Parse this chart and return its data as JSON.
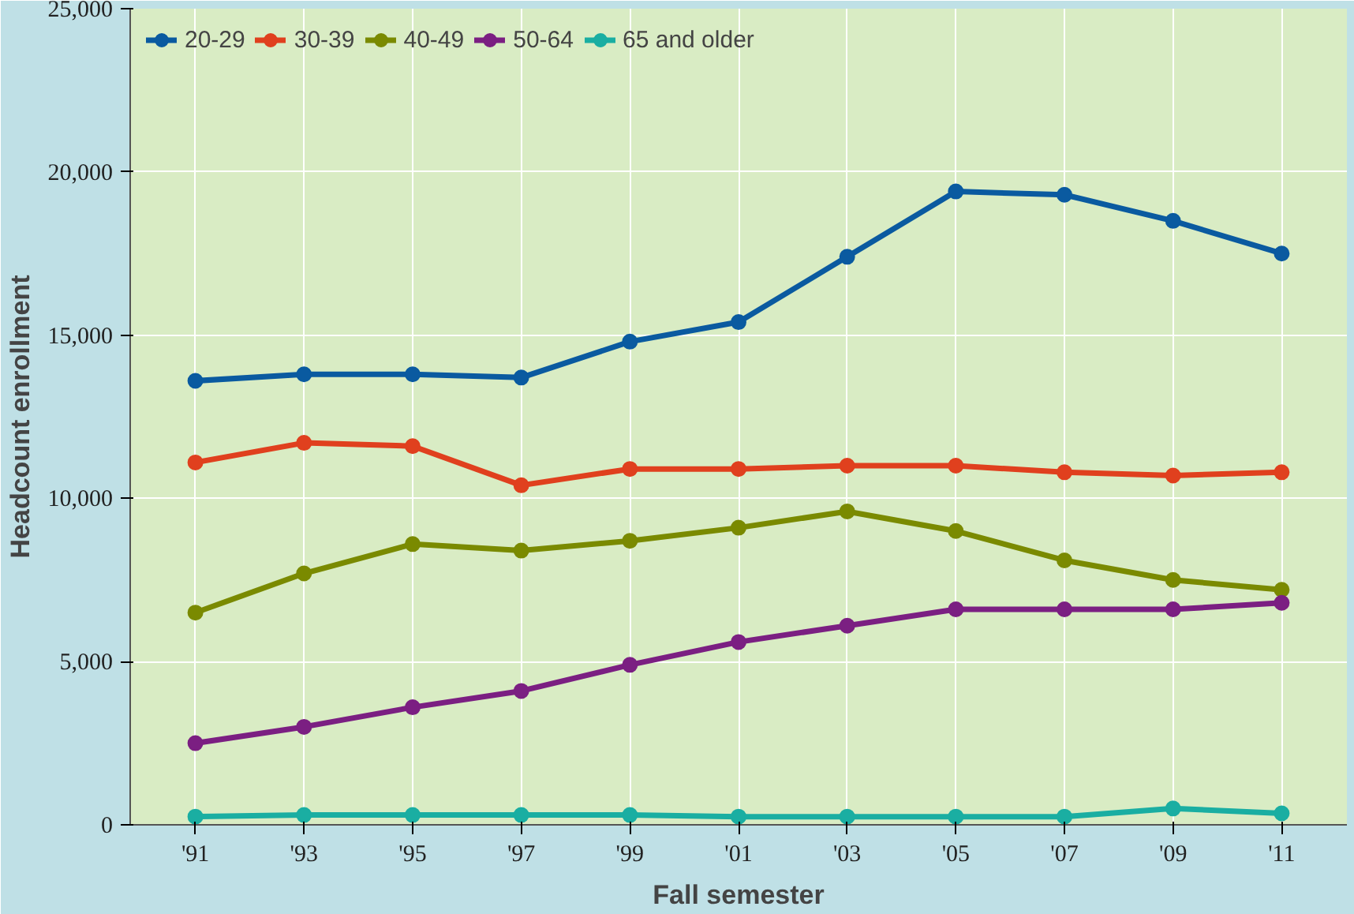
{
  "chart_data": {
    "type": "line",
    "xlabel": "Fall semester",
    "ylabel": "Headcount enrollment",
    "categories": [
      "'91",
      "'93",
      "'95",
      "'97",
      "'99",
      "'01",
      "'03",
      "'05",
      "'07",
      "'09",
      "'11"
    ],
    "ylim": [
      0,
      25000
    ],
    "yticks": [
      {
        "value": 0,
        "label": "0"
      },
      {
        "value": 5000,
        "label": "5,000"
      },
      {
        "value": 10000,
        "label": "10,000"
      },
      {
        "value": 15000,
        "label": "15,000"
      },
      {
        "value": 20000,
        "label": "20,000"
      },
      {
        "value": 25000,
        "label": "25,000"
      }
    ],
    "grid": true,
    "legend": "top left",
    "marker": "circle",
    "line_style": "solid",
    "series": [
      {
        "name": "20-29",
        "color": "#0a5aa0",
        "values": [
          13600,
          13800,
          13800,
          13700,
          14800,
          15400,
          17400,
          19400,
          19300,
          18500,
          17500
        ]
      },
      {
        "name": "30-39",
        "color": "#e0401e",
        "values": [
          11100,
          11700,
          11600,
          10400,
          10900,
          10900,
          11000,
          11000,
          10800,
          10700,
          10800
        ]
      },
      {
        "name": "40-49",
        "color": "#7a8a00",
        "values": [
          6500,
          7700,
          8600,
          8400,
          8700,
          9100,
          9600,
          9000,
          8100,
          7500,
          7200
        ]
      },
      {
        "name": "50-64",
        "color": "#7b1f82",
        "values": [
          2500,
          3000,
          3600,
          4100,
          4900,
          5600,
          6100,
          6600,
          6600,
          6600,
          6800
        ]
      },
      {
        "name": "65 and older",
        "color": "#1aaea2",
        "values": [
          250,
          300,
          300,
          300,
          300,
          250,
          250,
          250,
          250,
          500,
          350
        ]
      }
    ]
  }
}
